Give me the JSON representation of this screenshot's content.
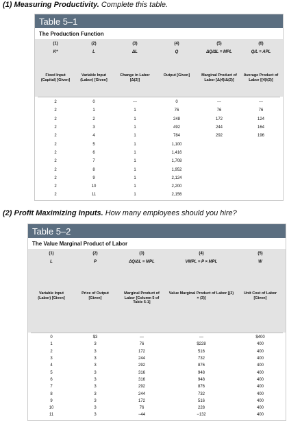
{
  "q1": {
    "title": "(1) Measuring Productivity.",
    "text": " Complete this table."
  },
  "table1": {
    "head": "Table 5–1",
    "subtitle": "The Production Function",
    "columns": [
      {
        "num": "(1)",
        "sym": "K*",
        "desc": "Fixed Input (Capital) [Given]"
      },
      {
        "num": "(2)",
        "sym": "L",
        "desc": "Variable Input (Labor) [Given]"
      },
      {
        "num": "(3)",
        "sym": "ΔL",
        "desc": "Change in Labor [Δ(2)]"
      },
      {
        "num": "(4)",
        "sym": "Q",
        "desc": "Output [Given]"
      },
      {
        "num": "(5)",
        "sym": "ΔQ/ΔL = MPL",
        "desc": "Marginal Product of Labor [Δ(4)/Δ(2)]"
      },
      {
        "num": "(6)",
        "sym": "Q/L = APL",
        "desc": "Average Product of Labor [(4)/(2)]"
      }
    ],
    "rows": [
      [
        "2",
        "0",
        "—",
        "0",
        "—",
        "—"
      ],
      [
        "2",
        "1",
        "1",
        "76",
        "76",
        "76"
      ],
      [
        "2",
        "2",
        "1",
        "248",
        "172",
        "124"
      ],
      [
        "2",
        "3",
        "1",
        "492",
        "244",
        "164"
      ],
      [
        "2",
        "4",
        "1",
        "784",
        "292",
        "196"
      ],
      [
        "2",
        "5",
        "1",
        "1,100",
        "",
        ""
      ],
      [
        "2",
        "6",
        "1",
        "1,416",
        "",
        ""
      ],
      [
        "2",
        "7",
        "1",
        "1,708",
        "",
        ""
      ],
      [
        "2",
        "8",
        "1",
        "1,952",
        "",
        ""
      ],
      [
        "2",
        "9",
        "1",
        "2,124",
        "",
        ""
      ],
      [
        "2",
        "10",
        "1",
        "2,200",
        "",
        ""
      ],
      [
        "2",
        "11",
        "1",
        "2,156",
        "",
        ""
      ]
    ]
  },
  "q2": {
    "title": "(2) Profit Maximizing Inputs.",
    "text": " How many employees should you hire?"
  },
  "table2": {
    "head": "Table 5–2",
    "subtitle": "The Value Marginal Product of Labor",
    "columns": [
      {
        "num": "(1)",
        "sym": "L",
        "desc": "Variable Input (Labor) [Given]"
      },
      {
        "num": "(2)",
        "sym": "P",
        "desc": "Price of Output [Given]"
      },
      {
        "num": "(3)",
        "sym": "ΔQ/ΔL = MPL",
        "desc": "Marginal Product of Labor [Column 5 of Table 5-1]"
      },
      {
        "num": "(4)",
        "sym": "VMPL = P × MPL",
        "desc": "Value Marginal Product of Labor [(2) × (3)]"
      },
      {
        "num": "(5)",
        "sym": "W",
        "desc": "Unit Cost of Labor [Given]"
      }
    ],
    "rows": [
      [
        "0",
        "$3",
        "—",
        "—",
        "$400"
      ],
      [
        "1",
        "3",
        "76",
        "$228",
        "400"
      ],
      [
        "2",
        "3",
        "172",
        "516",
        "400"
      ],
      [
        "3",
        "3",
        "244",
        "732",
        "400"
      ],
      [
        "4",
        "3",
        "292",
        "876",
        "400"
      ],
      [
        "5",
        "3",
        "316",
        "948",
        "400"
      ],
      [
        "6",
        "3",
        "316",
        "948",
        "400"
      ],
      [
        "7",
        "3",
        "292",
        "876",
        "400"
      ],
      [
        "8",
        "3",
        "244",
        "732",
        "400"
      ],
      [
        "9",
        "3",
        "172",
        "516",
        "400"
      ],
      [
        "10",
        "3",
        "76",
        "228",
        "400"
      ],
      [
        "11",
        "3",
        "−44",
        "−132",
        "400"
      ]
    ]
  }
}
